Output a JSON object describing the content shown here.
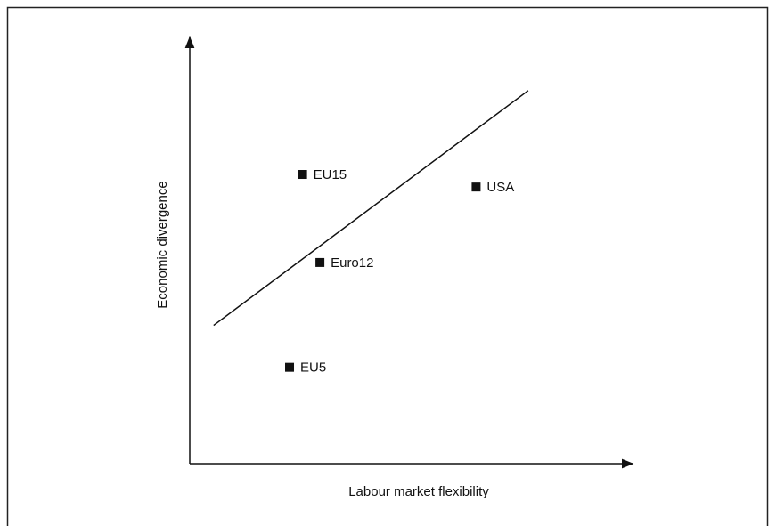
{
  "chart_data": {
    "type": "scatter",
    "xlabel": "Labour market flexibility",
    "ylabel": "Economic divergence",
    "xlim": [
      0,
      100
    ],
    "ylim": [
      0,
      100
    ],
    "color": "#111111",
    "points": {
      "labels": [
        "EU15",
        "USA",
        "Euro12",
        "EU5"
      ],
      "x": [
        26,
        66,
        30,
        23
      ],
      "y": [
        69,
        66,
        48,
        23
      ]
    },
    "line": {
      "x": [
        5.5,
        78
      ],
      "y": [
        33,
        89
      ]
    }
  }
}
